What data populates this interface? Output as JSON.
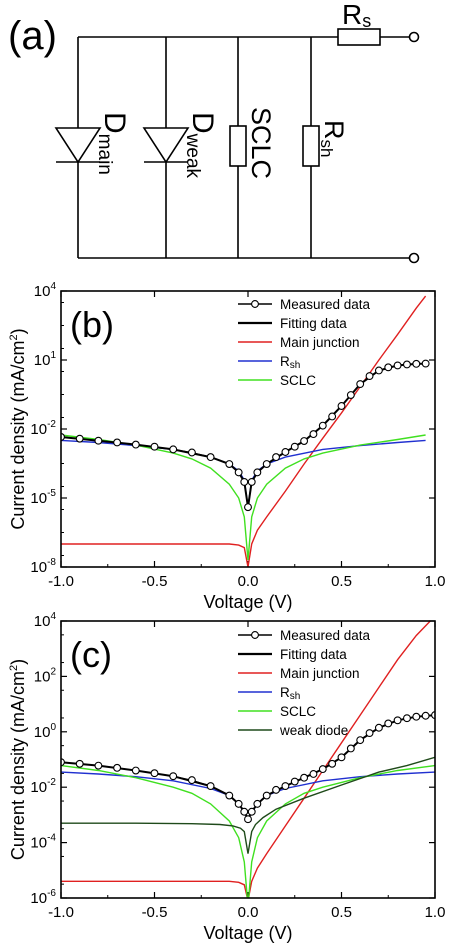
{
  "panel_a": {
    "label": "(a)",
    "components": {
      "d_main": {
        "main": "D",
        "sub": "main"
      },
      "d_weak": {
        "main": "D",
        "sub": "weak"
      },
      "sclc": "SCLC",
      "rsh": {
        "main": "R",
        "sub": "sh"
      },
      "rs": {
        "main": "R",
        "sub": "s"
      }
    }
  },
  "chart_data": [
    {
      "panel": "(b)",
      "type": "line",
      "xlabel": "Voltage (V)",
      "ylabel": "Current density (mA/cm",
      "ylabel_sup": "2",
      "ylabel_end": ")",
      "xlim": [
        -1.0,
        1.0
      ],
      "ylim_exp": [
        -8,
        4
      ],
      "yscale": "log",
      "xticks": [
        -1.0,
        -0.5,
        0.0,
        0.5,
        1.0
      ],
      "xtick_labels": [
        "-1.0",
        "-0.5",
        "0.0",
        "0.5",
        "1.0"
      ],
      "yticks_exp": [
        -8,
        -5,
        -2,
        1,
        4
      ],
      "legend_position": "top-right",
      "series": [
        {
          "name": "Measured data",
          "color": "#000000",
          "style": "markers",
          "x": [
            -1.0,
            -0.9,
            -0.8,
            -0.7,
            -0.6,
            -0.5,
            -0.4,
            -0.3,
            -0.2,
            -0.1,
            -0.05,
            -0.02,
            0.0,
            0.02,
            0.05,
            0.1,
            0.15,
            0.2,
            0.25,
            0.3,
            0.35,
            0.4,
            0.45,
            0.5,
            0.55,
            0.6,
            0.65,
            0.7,
            0.75,
            0.8,
            0.85,
            0.9,
            0.95
          ],
          "y": [
            0.0045,
            0.0038,
            0.0031,
            0.0026,
            0.0021,
            0.0017,
            0.0013,
            0.00095,
            0.0006,
            0.0003,
            0.00013,
            5e-05,
            4e-06,
            5e-05,
            0.00013,
            0.0003,
            0.0006,
            0.001,
            0.0017,
            0.003,
            0.006,
            0.014,
            0.035,
            0.1,
            0.3,
            0.9,
            2.0,
            3.5,
            4.8,
            5.8,
            6.4,
            6.8,
            7.0
          ]
        },
        {
          "name": "Fitting data",
          "color": "#000000",
          "style": "line",
          "x": [
            -1.0,
            -0.8,
            -0.6,
            -0.4,
            -0.2,
            -0.1,
            -0.05,
            -0.02,
            0.0,
            0.02,
            0.05,
            0.1,
            0.2,
            0.3,
            0.4,
            0.5,
            0.6,
            0.7,
            0.8,
            0.9,
            0.95
          ],
          "y": [
            0.0045,
            0.0031,
            0.0021,
            0.0013,
            0.0006,
            0.0003,
            0.00013,
            5e-05,
            4e-06,
            5e-05,
            0.00013,
            0.0003,
            0.001,
            0.003,
            0.014,
            0.1,
            0.9,
            3.5,
            5.8,
            6.8,
            7.0
          ]
        },
        {
          "name": "Main junction",
          "color": "#e02020",
          "style": "line",
          "x": [
            -1.0,
            -0.5,
            -0.1,
            -0.05,
            -0.02,
            0.0,
            0.02,
            0.05,
            0.1,
            0.2,
            0.3,
            0.4,
            0.5,
            0.6,
            0.7,
            0.8,
            0.9,
            0.95
          ],
          "y": [
            1e-07,
            1e-07,
            1e-07,
            9e-08,
            7e-08,
            1e-08,
            1e-07,
            4e-07,
            1.5e-06,
            2e-05,
            0.0003,
            0.004,
            0.05,
            0.7,
            10,
            130,
            1800,
            6000
          ]
        },
        {
          "name": "Rsh",
          "name_main": "R",
          "name_sub": "sh",
          "color": "#2030d0",
          "style": "line",
          "x": [
            -1.0,
            -0.8,
            -0.6,
            -0.4,
            -0.2,
            -0.1,
            -0.05,
            -0.02,
            0.0,
            0.02,
            0.05,
            0.1,
            0.2,
            0.4,
            0.6,
            0.8,
            0.95
          ],
          "y": [
            0.0032,
            0.0026,
            0.0019,
            0.0013,
            0.0006,
            0.0003,
            0.00015,
            6e-05,
            4e-06,
            6e-05,
            0.00015,
            0.0003,
            0.0006,
            0.0013,
            0.0019,
            0.0026,
            0.0032
          ]
        },
        {
          "name": "SCLC",
          "color": "#40e020",
          "style": "line",
          "x": [
            -1.0,
            -0.8,
            -0.6,
            -0.4,
            -0.3,
            -0.2,
            -0.1,
            -0.05,
            -0.02,
            0.0,
            0.02,
            0.05,
            0.1,
            0.2,
            0.3,
            0.4,
            0.6,
            0.8,
            0.95
          ],
          "y": [
            0.0055,
            0.0035,
            0.002,
            0.0009,
            0.0005,
            0.0002,
            4e-05,
            1e-05,
            1.5e-06,
            2e-08,
            1.5e-06,
            1e-05,
            4e-05,
            0.0002,
            0.0005,
            0.0009,
            0.002,
            0.0035,
            0.0055
          ]
        }
      ]
    },
    {
      "panel": "(c)",
      "type": "line",
      "xlabel": "Voltage (V)",
      "ylabel": "Current density (mA/cm",
      "ylabel_sup": "2",
      "ylabel_end": ")",
      "xlim": [
        -1.0,
        1.0
      ],
      "ylim_exp": [
        -6,
        4
      ],
      "yscale": "log",
      "xticks": [
        -1.0,
        -0.5,
        0.0,
        0.5,
        1.0
      ],
      "xtick_labels": [
        "-1.0",
        "-0.5",
        "0.0",
        "0.5",
        "1.0"
      ],
      "yticks_exp": [
        -6,
        -4,
        -2,
        0,
        2,
        4
      ],
      "legend_position": "top-right",
      "series": [
        {
          "name": "Measured data",
          "color": "#000000",
          "style": "markers",
          "x": [
            -1.0,
            -0.9,
            -0.8,
            -0.7,
            -0.6,
            -0.5,
            -0.4,
            -0.3,
            -0.2,
            -0.1,
            -0.05,
            -0.02,
            0.0,
            0.02,
            0.05,
            0.1,
            0.15,
            0.2,
            0.25,
            0.3,
            0.35,
            0.4,
            0.45,
            0.5,
            0.55,
            0.6,
            0.65,
            0.7,
            0.75,
            0.8,
            0.85,
            0.9,
            0.95,
            1.0
          ],
          "y": [
            0.08,
            0.07,
            0.06,
            0.05,
            0.04,
            0.032,
            0.025,
            0.018,
            0.011,
            0.005,
            0.0025,
            0.0013,
            0.0007,
            0.0013,
            0.0025,
            0.005,
            0.008,
            0.011,
            0.016,
            0.022,
            0.03,
            0.045,
            0.07,
            0.12,
            0.25,
            0.5,
            0.9,
            1.4,
            2.0,
            2.6,
            3.1,
            3.5,
            3.8,
            4.0
          ]
        },
        {
          "name": "Fitting data",
          "color": "#000000",
          "style": "line",
          "x": [
            -1.0,
            -0.8,
            -0.6,
            -0.4,
            -0.2,
            -0.1,
            -0.05,
            -0.02,
            0.0,
            0.02,
            0.05,
            0.1,
            0.2,
            0.3,
            0.4,
            0.5,
            0.6,
            0.7,
            0.8,
            0.9,
            1.0
          ],
          "y": [
            0.08,
            0.06,
            0.04,
            0.025,
            0.011,
            0.005,
            0.0025,
            0.0013,
            0.0007,
            0.0013,
            0.0025,
            0.005,
            0.011,
            0.022,
            0.045,
            0.12,
            0.5,
            1.4,
            2.6,
            3.5,
            4.0
          ]
        },
        {
          "name": "Main junction",
          "color": "#e02020",
          "style": "line",
          "x": [
            -1.0,
            -0.5,
            -0.1,
            -0.05,
            -0.02,
            0.0,
            0.02,
            0.05,
            0.1,
            0.2,
            0.3,
            0.4,
            0.5,
            0.6,
            0.7,
            0.8,
            0.9,
            1.0
          ],
          "y": [
            4e-06,
            4e-06,
            4e-06,
            3.7e-06,
            3e-06,
            8e-07,
            4e-06,
            1.2e-05,
            4e-05,
            0.0004,
            0.004,
            0.04,
            0.4,
            4,
            40,
            400,
            3000,
            15000
          ]
        },
        {
          "name": "Rsh",
          "name_main": "R",
          "name_sub": "sh",
          "color": "#2030d0",
          "style": "line",
          "x": [
            -1.0,
            -0.8,
            -0.6,
            -0.4,
            -0.2,
            -0.1,
            -0.05,
            -0.02,
            0.0,
            0.02,
            0.05,
            0.1,
            0.2,
            0.4,
            0.6,
            0.8,
            1.0
          ],
          "y": [
            0.035,
            0.03,
            0.024,
            0.017,
            0.009,
            0.005,
            0.0025,
            0.0012,
            0.0007,
            0.0012,
            0.0025,
            0.005,
            0.009,
            0.017,
            0.024,
            0.03,
            0.035
          ]
        },
        {
          "name": "SCLC",
          "color": "#40e020",
          "style": "line",
          "x": [
            -1.0,
            -0.8,
            -0.6,
            -0.4,
            -0.3,
            -0.2,
            -0.1,
            -0.05,
            -0.02,
            0.0,
            0.02,
            0.05,
            0.1,
            0.2,
            0.3,
            0.4,
            0.6,
            0.8,
            1.0
          ],
          "y": [
            0.06,
            0.04,
            0.022,
            0.01,
            0.006,
            0.0025,
            0.0006,
            0.00015,
            2e-05,
            2e-07,
            2e-05,
            0.00015,
            0.0006,
            0.0025,
            0.006,
            0.01,
            0.022,
            0.04,
            0.06
          ]
        },
        {
          "name": "weak diode",
          "color": "#1f4a1a",
          "style": "line",
          "x": [
            -1.0,
            -0.6,
            -0.3,
            -0.15,
            -0.08,
            -0.04,
            -0.02,
            0.0,
            0.02,
            0.04,
            0.08,
            0.15,
            0.3,
            0.5,
            0.7,
            0.85,
            1.0
          ],
          "y": [
            0.0005,
            0.0005,
            0.00048,
            0.00045,
            0.0004,
            0.00033,
            0.00025,
            4e-05,
            0.00025,
            0.00045,
            0.0008,
            0.0016,
            0.004,
            0.012,
            0.035,
            0.06,
            0.12
          ]
        }
      ]
    }
  ]
}
